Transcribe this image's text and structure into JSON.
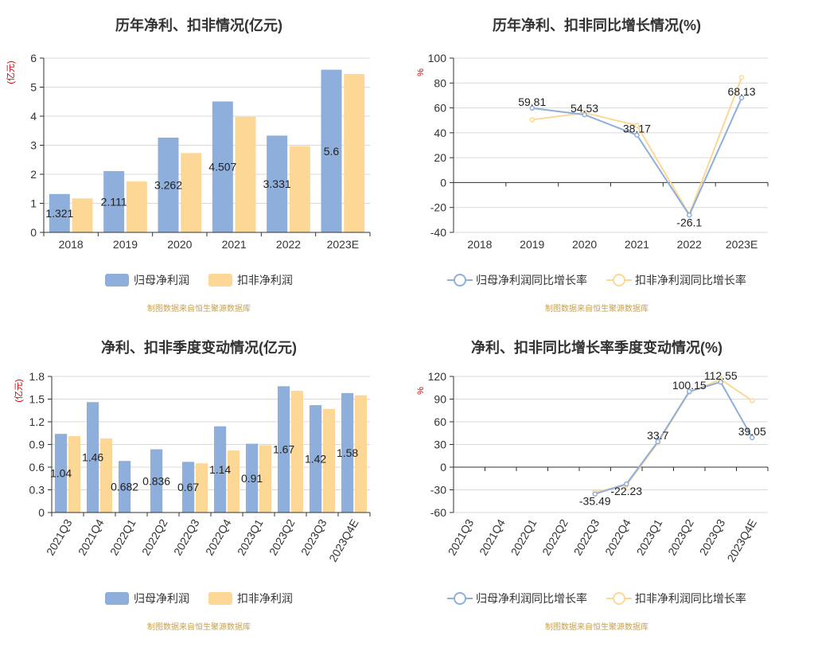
{
  "source_note": "制图数据来自恒生聚源数据库",
  "colors": {
    "series_blue": "#8eaedb",
    "series_orange": "#fdd795",
    "unit_red": "#cc0000"
  },
  "chart_data": [
    {
      "id": "annual-profit",
      "type": "bar",
      "title": "历年净利、扣非情况(亿元)",
      "ylabel": "(亿元)",
      "ylim": [
        0,
        6
      ],
      "yticks": [
        0,
        1,
        2,
        3,
        4,
        5,
        6
      ],
      "categories": [
        "2018",
        "2019",
        "2020",
        "2021",
        "2022",
        "2023E"
      ],
      "series": [
        {
          "name": "归母净利润",
          "values": [
            1.321,
            2.111,
            3.262,
            4.507,
            3.331,
            5.6
          ],
          "labels": [
            "1.321",
            "2.111",
            "3.262",
            "4.507",
            "3.331",
            "5.6"
          ]
        },
        {
          "name": "扣非净利润",
          "values": [
            1.17,
            1.75,
            2.73,
            3.98,
            2.97,
            5.45
          ]
        }
      ],
      "grid": true,
      "legend": "bottom"
    },
    {
      "id": "annual-growth",
      "type": "line",
      "title": "历年净利、扣非同比增长情况(%)",
      "ylabel": "%",
      "ylim": [
        -40,
        100
      ],
      "yticks": [
        -40,
        -20,
        0,
        20,
        40,
        60,
        80,
        100
      ],
      "categories": [
        "2018",
        "2019",
        "2020",
        "2021",
        "2022",
        "2023E"
      ],
      "series": [
        {
          "name": "归母净利润同比增长率",
          "values": [
            null,
            59.81,
            54.53,
            38.17,
            -26.1,
            68.13
          ],
          "labels": [
            "",
            "59.81",
            "54.53",
            "38.17",
            "-26.1",
            "68.13"
          ]
        },
        {
          "name": "扣非净利润同比增长率",
          "values": [
            null,
            50.5,
            56.0,
            46.0,
            -25.5,
            84.5
          ]
        }
      ],
      "grid": true,
      "legend": "bottom"
    },
    {
      "id": "quarterly-profit",
      "type": "bar",
      "title": "净利、扣非季度变动情况(亿元)",
      "ylabel": "(亿元)",
      "ylim": [
        0,
        1.8
      ],
      "yticks": [
        "0",
        "0.3",
        "0.6",
        "0.9",
        "1.2",
        "1.5",
        "1.8"
      ],
      "categories": [
        "2021Q3",
        "2021Q4",
        "2022Q1",
        "2022Q2",
        "2022Q3",
        "2022Q4",
        "2023Q1",
        "2023Q2",
        "2023Q3",
        "2023Q4E"
      ],
      "series": [
        {
          "name": "归母净利润",
          "values": [
            1.04,
            1.46,
            0.682,
            0.836,
            0.67,
            1.14,
            0.91,
            1.67,
            1.42,
            1.58
          ],
          "labels": [
            "1.04",
            "1.46",
            "0.682",
            "0.836",
            "0.67",
            "1.14",
            "0.91",
            "1.67",
            "1.42",
            "1.58"
          ]
        },
        {
          "name": "扣非净利润",
          "values": [
            1.01,
            0.98,
            null,
            null,
            0.65,
            0.82,
            0.89,
            1.61,
            1.37,
            1.55
          ]
        }
      ],
      "grid": true,
      "legend": "bottom"
    },
    {
      "id": "quarterly-growth",
      "type": "line",
      "title": "净利、扣非同比增长率季度变动情况(%)",
      "ylabel": "%",
      "ylim": [
        -60,
        120
      ],
      "yticks": [
        -60,
        -30,
        0,
        30,
        60,
        90,
        120
      ],
      "categories": [
        "2021Q3",
        "2021Q4",
        "2022Q1",
        "2022Q2",
        "2022Q3",
        "2022Q4",
        "2023Q1",
        "2023Q2",
        "2023Q3",
        "2023Q4E"
      ],
      "series": [
        {
          "name": "归母净利润同比增长率",
          "values": [
            null,
            null,
            null,
            null,
            -35.49,
            -22.23,
            33.7,
            100.15,
            112.55,
            39.05
          ],
          "labels": [
            "",
            "",
            "",
            "",
            "-35.49",
            "-22.23",
            "33.7",
            "100.15",
            "112.55",
            "39.05"
          ]
        },
        {
          "name": "扣非净利润同比增长率",
          "values": [
            null,
            null,
            null,
            null,
            -33.0,
            -24.0,
            32.0,
            99.0,
            116.0,
            88.0
          ]
        }
      ],
      "grid": true,
      "legend": "bottom"
    }
  ]
}
